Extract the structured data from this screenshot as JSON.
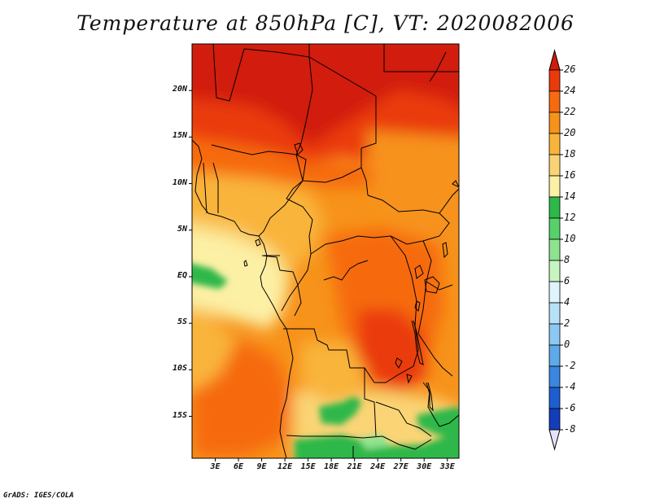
{
  "title": "Temperature at 850hPa [C], VT: 2020082006",
  "credit": "GrADS: IGES/COLA",
  "map": {
    "lat_labels": [
      "20N",
      "15N",
      "10N",
      "5N",
      "EQ",
      "5S",
      "10S",
      "15S"
    ],
    "lat_values": [
      20,
      15,
      10,
      5,
      0,
      -5,
      -10,
      -15
    ],
    "lon_labels": [
      "3E",
      "6E",
      "9E",
      "12E",
      "15E",
      "18E",
      "21E",
      "24E",
      "27E",
      "30E",
      "33E"
    ],
    "lon_values": [
      3,
      6,
      9,
      12,
      15,
      18,
      21,
      24,
      27,
      30,
      33
    ],
    "extent": {
      "lon": [
        0,
        34.5
      ],
      "lat": [
        -19.5,
        25
      ]
    }
  },
  "colorbar": {
    "labels": [
      "26",
      "24",
      "22",
      "20",
      "18",
      "16",
      "14",
      "12",
      "10",
      "8",
      "6",
      "4",
      "2",
      "0",
      "-2",
      "-4",
      "-6",
      "-8"
    ],
    "colors": [
      "#d21b0a",
      "#ea3a0c",
      "#f66b10",
      "#f7921a",
      "#f9b43b",
      "#fad474",
      "#fcf0a5",
      "#2db84a",
      "#58d16a",
      "#8fe38f",
      "#c6f5c1",
      "#dff4fb",
      "#b7e1f7",
      "#8cc8f2",
      "#5ea9ea",
      "#3a86e0",
      "#1d5fd1",
      "#133dba",
      "#0b1a7a"
    ]
  },
  "colors": {
    "hot": "#d21b0a",
    "warm": "#f7921a",
    "mild": "#fcf0a5",
    "cool": "#2db84a",
    "border": "#000000"
  }
}
